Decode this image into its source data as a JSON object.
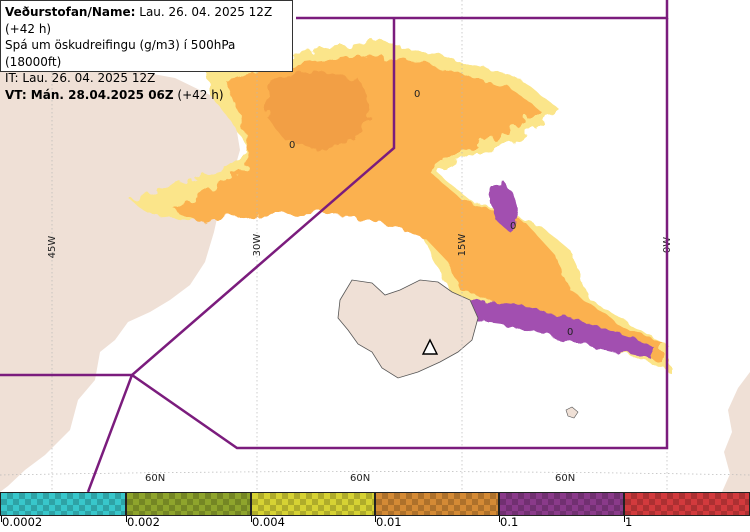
{
  "info": {
    "line1_label": "Veðurstofan/Name:",
    "line1_value": " Lau. 26. 04. 2025 12Z (+42 h)",
    "line2": "Spá um öskudreifingu (g/m3) í 500hPa (18000ft)",
    "line3": "IT: Lau. 26. 04. 2025 12Z",
    "line4_label": "VT: Mán. 28.04.2025 06Z",
    "line4_value": " (+42 h)"
  },
  "map": {
    "longitude_labels": [
      "45W",
      "30W",
      "15W",
      "0W"
    ],
    "latitude_labels": [
      "60N",
      "60N",
      "60N"
    ],
    "contour_labels": [
      "0",
      "0",
      "0",
      "0"
    ],
    "colors": {
      "land": "#efe0d6",
      "sea": "#ffffff",
      "ash_low": "#fbe58a",
      "ash_mid": "#fbb14f",
      "ash_high": "#f29f45",
      "ash_top": "#a24fb0",
      "ash_peak": "#e8404a",
      "boundary": "#7b1c7d",
      "volcano": "#ffffff"
    }
  },
  "legend": {
    "labels": [
      "0.0002",
      "0.002",
      "0.004",
      "0.01",
      "0.1",
      "1"
    ],
    "swatch_colors": [
      "#38c7cb",
      "#8ea42c",
      "#d6d233",
      "#d48a35",
      "#8a3a8a",
      "#d23a3d"
    ]
  }
}
